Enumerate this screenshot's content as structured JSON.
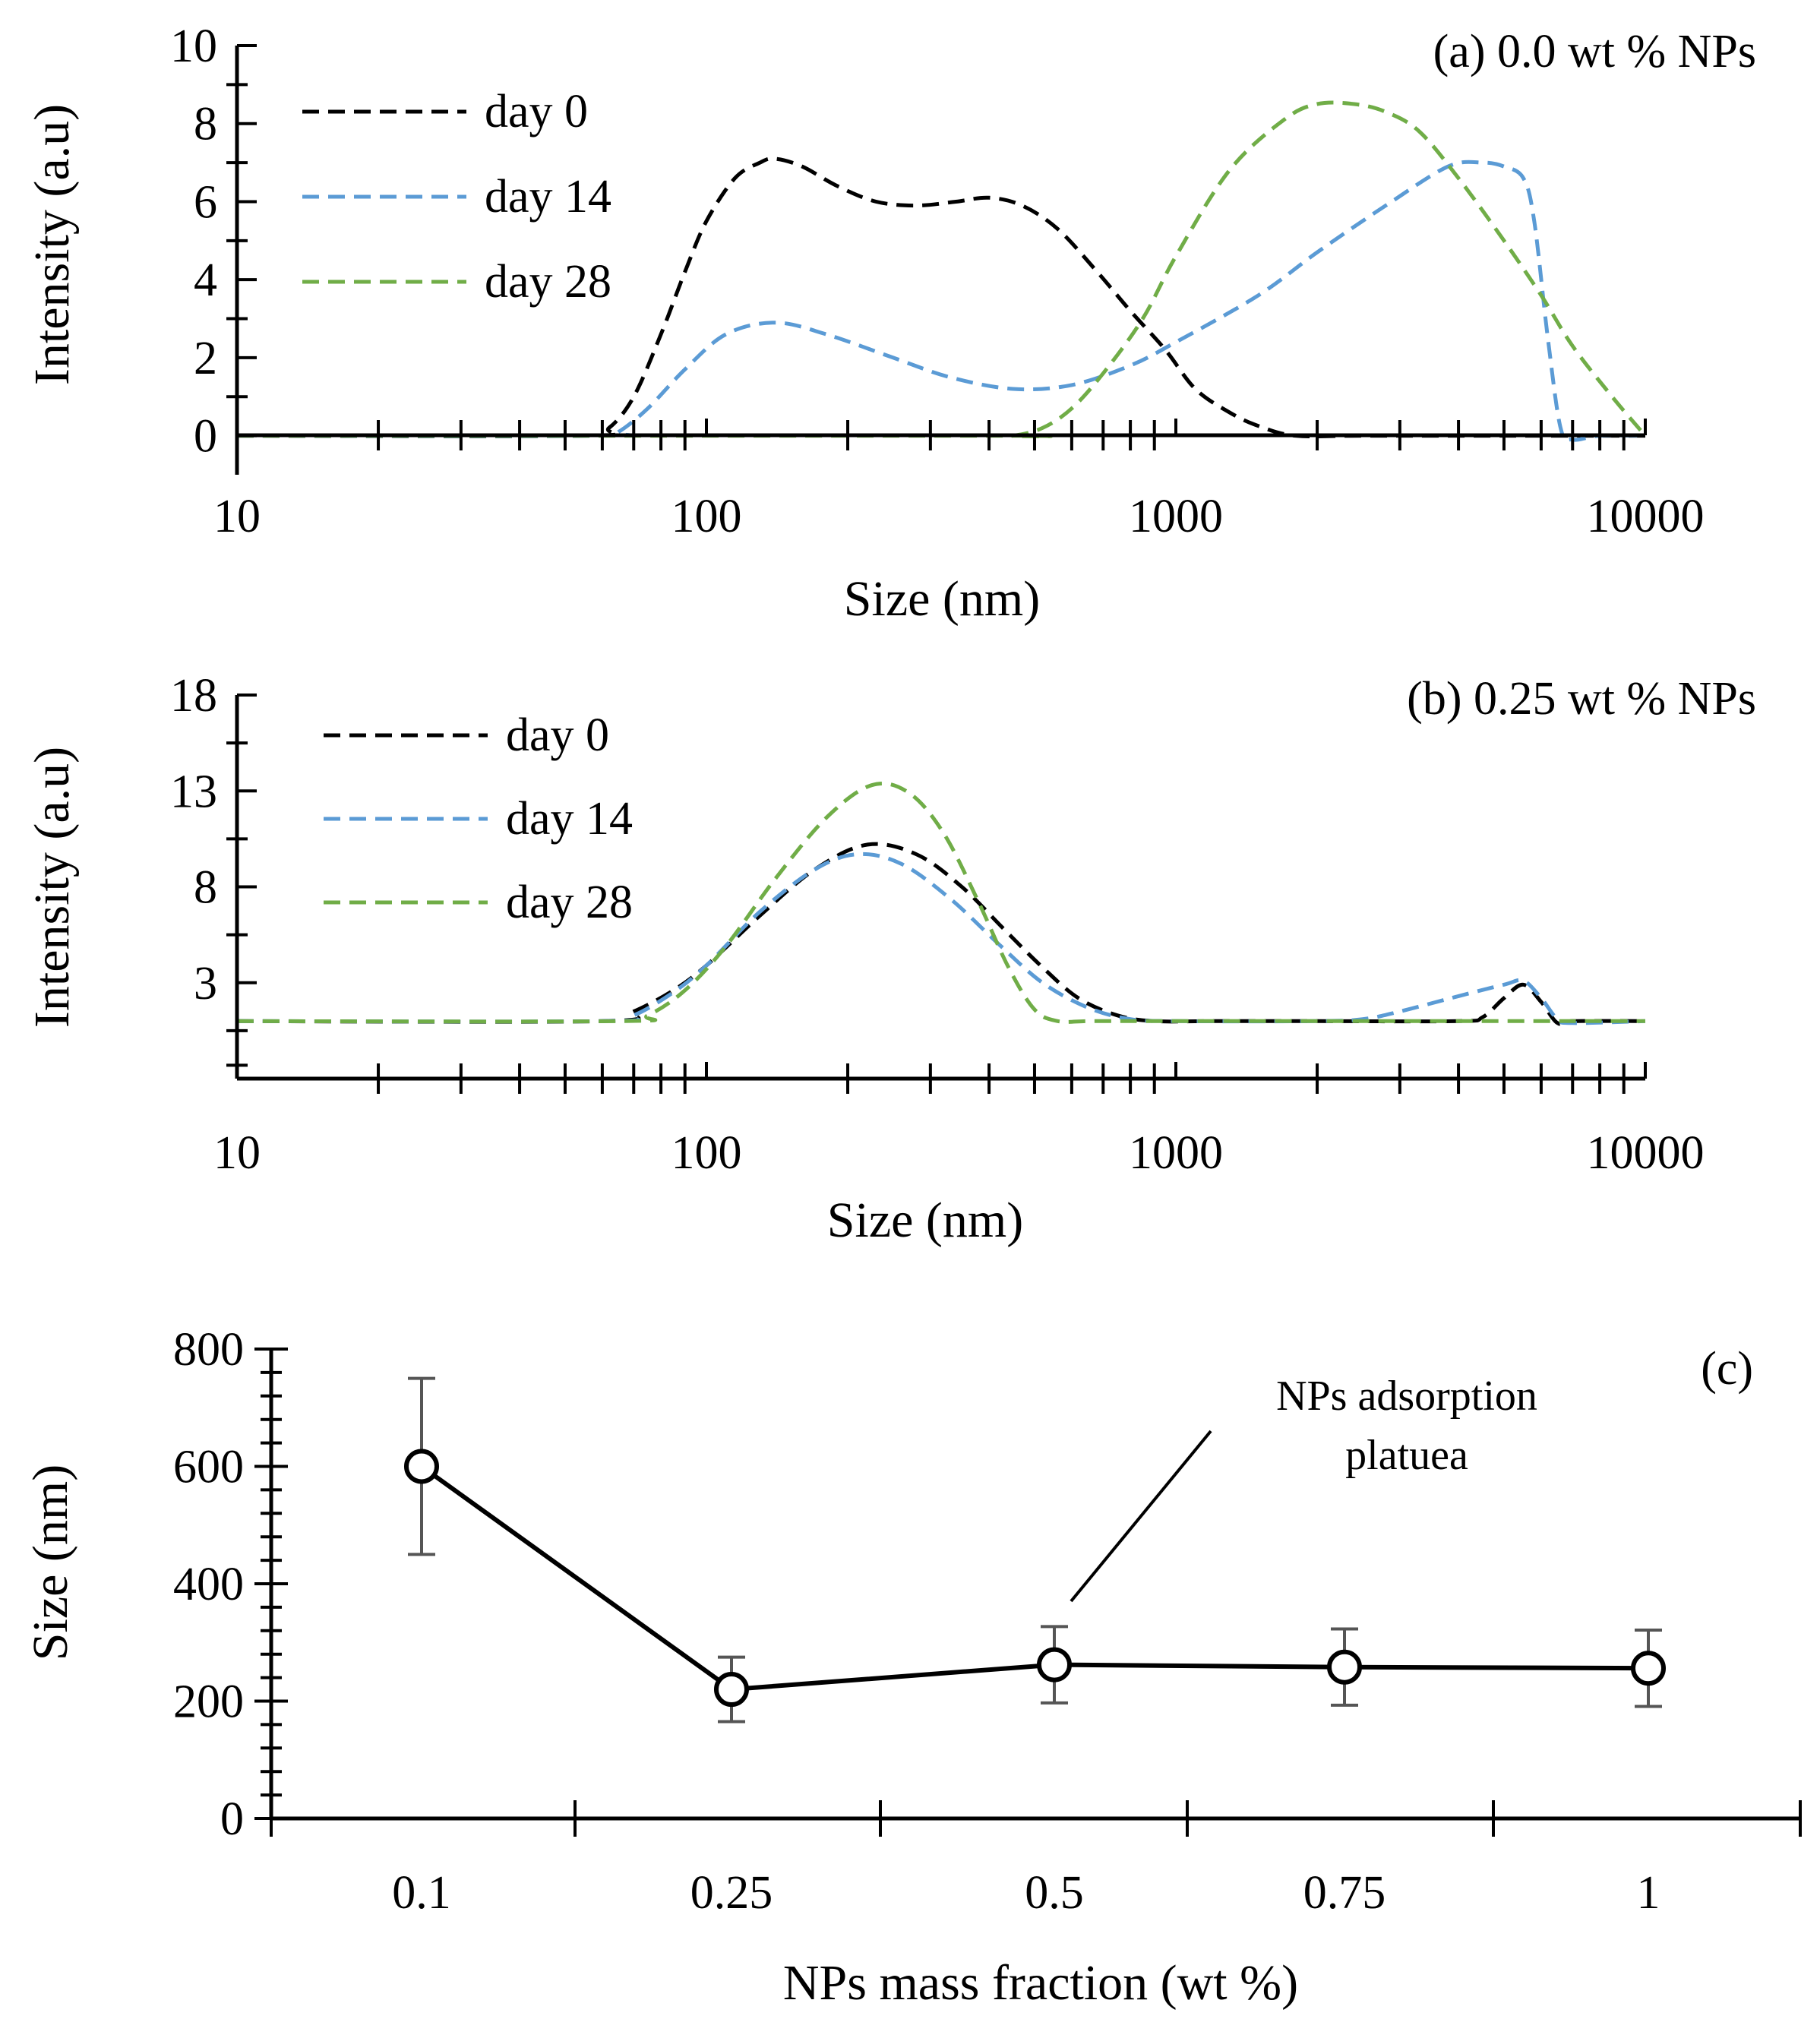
{
  "chart_data": [
    {
      "type": "line",
      "panel_label": "(a) 0.0 wt % NPs",
      "xlabel": "Size (nm)",
      "ylabel": "Intensity (a.u)",
      "xscale": "log",
      "xlim": [
        10,
        10000
      ],
      "ylim": [
        -1,
        10
      ],
      "x_tick_labels": [
        "10",
        "100",
        "1000",
        "10000"
      ],
      "y_tick_labels": [
        "0",
        "2",
        "4",
        "6",
        "8",
        "10"
      ],
      "legend": "top-left",
      "series": [
        {
          "name": "day 0",
          "color": "#000000",
          "x": [
            10,
            55,
            62,
            70,
            80,
            90,
            100,
            115,
            130,
            140,
            160,
            190,
            230,
            280,
            340,
            400,
            470,
            560,
            680,
            800,
            950,
            1100,
            1300,
            1500,
            1800,
            2500,
            5000,
            10000
          ],
          "y": [
            0,
            0,
            0.2,
            1.0,
            2.6,
            4.2,
            5.5,
            6.6,
            7.0,
            7.1,
            6.9,
            6.4,
            6.0,
            5.9,
            6.0,
            6.1,
            5.9,
            5.3,
            4.2,
            3.2,
            2.2,
            1.2,
            0.6,
            0.25,
            0,
            0,
            0,
            0
          ]
        },
        {
          "name": "day 14",
          "color": "#5B9BD5",
          "x": [
            10,
            60,
            65,
            75,
            90,
            110,
            140,
            180,
            250,
            330,
            450,
            600,
            800,
            1000,
            1500,
            2000,
            2800,
            3800,
            4500,
            5000,
            5500,
            5800,
            6200,
            6600,
            7000,
            8000,
            10000
          ],
          "y": [
            0,
            0,
            0.1,
            0.7,
            1.7,
            2.6,
            2.9,
            2.6,
            2.0,
            1.5,
            1.2,
            1.3,
            1.8,
            2.4,
            3.6,
            4.7,
            5.9,
            6.9,
            7.0,
            6.9,
            6.6,
            5.5,
            2.5,
            0.2,
            -0.1,
            0,
            0
          ]
        },
        {
          "name": "day 28",
          "color": "#70AD47",
          "x": [
            10,
            400,
            450,
            520,
            600,
            700,
            850,
            1000,
            1300,
            1700,
            2000,
            2400,
            2800,
            3300,
            4000,
            5000,
            6000,
            7000,
            8500,
            10000
          ],
          "y": [
            0,
            0,
            0,
            0.2,
            0.7,
            1.6,
            3.0,
            4.6,
            6.8,
            8.1,
            8.5,
            8.5,
            8.3,
            7.8,
            6.6,
            5.0,
            3.6,
            2.3,
            1.0,
            0
          ]
        }
      ]
    },
    {
      "type": "line",
      "panel_label": "(b) 0.25 wt % NPs",
      "xlabel": "Size (nm)",
      "ylabel": "Intensity (a.u)",
      "xscale": "log",
      "xlim": [
        10,
        10000
      ],
      "ylim": [
        -2,
        18
      ],
      "x_tick_labels": [
        "10",
        "100",
        "1000",
        "10000"
      ],
      "y_tick_labels": [
        "3",
        "8",
        "13",
        "18"
      ],
      "legend": "top-left",
      "series": [
        {
          "name": "day 0",
          "color": "#000000",
          "x": [
            10,
            60,
            70,
            85,
            100,
            130,
            170,
            220,
            280,
            350,
            430,
            520,
            620,
            750,
            900,
            1200,
            2000,
            4000,
            4500,
            5000,
            5500,
            6000,
            6500,
            7000,
            10000
          ],
          "y": [
            1,
            1,
            1.5,
            2.6,
            3.9,
            6.5,
            8.9,
            10.2,
            9.7,
            8.0,
            5.8,
            3.8,
            2.2,
            1.3,
            1.0,
            1.0,
            1.0,
            1.0,
            1.2,
            2.2,
            2.9,
            2.0,
            0.9,
            1.0,
            1.0
          ]
        },
        {
          "name": "day 14",
          "color": "#5B9BD5",
          "x": [
            10,
            60,
            70,
            85,
            100,
            130,
            170,
            210,
            260,
            330,
            420,
            520,
            650,
            800,
            1000,
            2000,
            2500,
            3000,
            4000,
            5000,
            5500,
            6000,
            6500,
            7000,
            10000
          ],
          "y": [
            1,
            1,
            1.3,
            2.5,
            3.9,
            6.7,
            8.9,
            9.7,
            9.2,
            7.4,
            5.0,
            3.0,
            1.7,
            1.1,
            1.0,
            1.0,
            1.1,
            1.5,
            2.3,
            2.9,
            3.1,
            2.2,
            1.1,
            0.9,
            1.0
          ]
        },
        {
          "name": "day 28",
          "color": "#70AD47",
          "x": [
            10,
            65,
            75,
            90,
            110,
            140,
            180,
            225,
            270,
            320,
            380,
            440,
            500,
            560,
            650,
            800,
            1000,
            5000,
            10000
          ],
          "y": [
            1,
            1,
            1.3,
            2.6,
            4.9,
            8.4,
            11.6,
            13.3,
            12.9,
            10.8,
            7.2,
            3.8,
            1.6,
            1.0,
            1.0,
            1.0,
            1.0,
            1.0,
            1.0
          ]
        }
      ]
    },
    {
      "type": "line",
      "panel_label": "(c)",
      "xlabel": "NPs mass fraction (wt %)",
      "ylabel": "Size (nm)",
      "categories": [
        "0.1",
        "0.25",
        "0.5",
        "0.75",
        "1"
      ],
      "ylim": [
        0,
        800
      ],
      "y_tick_labels": [
        "0",
        "200",
        "400",
        "600",
        "800"
      ],
      "series": [
        {
          "values": [
            600,
            220,
            262,
            258,
            256
          ],
          "error": [
            150,
            55,
            65,
            65,
            65
          ],
          "color": "#000000"
        }
      ],
      "annotation": [
        "NPs adsorption",
        "platuea"
      ]
    }
  ]
}
